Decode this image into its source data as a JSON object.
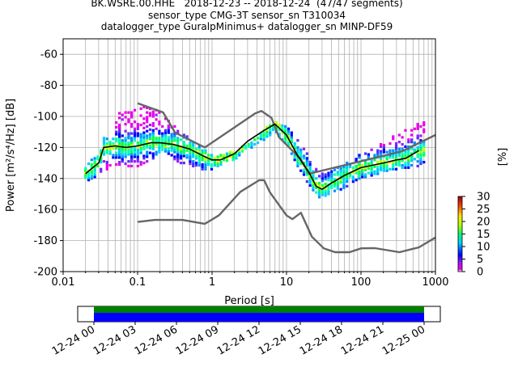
{
  "title": {
    "line1": "BK.WSRE.00.HHE   2018-12-23 -- 2018-12-24  (47/47 segments)",
    "line2": "sensor_type CMG-3T sensor_sn T310034",
    "line3": "datalogger_type GuralpMinimus+ datalogger_sn MINP-DF59"
  },
  "chart_data": [
    {
      "type": "heatmap",
      "title": "",
      "xlabel": "Period [s]",
      "ylabel": "Power [m²/s⁴/Hz] [dB]",
      "xscale": "log",
      "xlim": [
        0.01,
        1000
      ],
      "ylim": [
        -200,
        -50
      ],
      "x_ticks": [
        "0.01",
        "0.1",
        "1",
        "10",
        "100",
        "1000"
      ],
      "y_ticks": [
        "-60",
        "-80",
        "-100",
        "-120",
        "-140",
        "-160",
        "-180",
        "-200"
      ],
      "grid": true,
      "colorbar": {
        "label": "[%]",
        "range": [
          0,
          30
        ],
        "ticks": [
          "0",
          "5",
          "10",
          "15",
          "20",
          "25",
          "30"
        ]
      },
      "series": [
        {
          "name": "",
          "kind": "new-high-noise-model",
          "color": "#666666",
          "x": [
            0.1,
            0.22,
            0.32,
            0.8,
            3.8,
            4.6,
            6.3,
            7.9,
            15.4,
            20,
            354.8,
            1000
          ],
          "y": [
            -91.5,
            -97.4,
            -110.5,
            -120,
            -98,
            -96.5,
            -101,
            -113.4,
            -127.4,
            -137,
            -122.5,
            -112
          ]
        },
        {
          "name": "",
          "kind": "new-low-noise-model",
          "color": "#666666",
          "x": [
            0.1,
            0.17,
            0.4,
            0.8,
            1.24,
            2.4,
            4.3,
            5,
            6,
            10,
            12,
            15.6,
            21.9,
            31.6,
            45,
            70,
            101,
            154,
            328,
            600,
            1000
          ],
          "y": [
            -168,
            -166.7,
            -166.7,
            -169.2,
            -163.7,
            -148.6,
            -141.1,
            -141.1,
            -149,
            -163.8,
            -166.2,
            -162.1,
            -177.5,
            -185,
            -187.5,
            -187.5,
            -185,
            -184.9,
            -187.5,
            -184.4,
            -178
          ]
        },
        {
          "name": "",
          "kind": "mode",
          "color": "#000000",
          "x": [
            0.02,
            0.025,
            0.03,
            0.035,
            0.05,
            0.07,
            0.1,
            0.15,
            0.2,
            0.3,
            0.5,
            0.8,
            1,
            1.3,
            2,
            3,
            5,
            7,
            10,
            14,
            20,
            25,
            30,
            40,
            60,
            100,
            200,
            300,
            400,
            600
          ],
          "y": [
            -137,
            -133,
            -130,
            -120,
            -119,
            -120,
            -119,
            -117,
            -117,
            -118,
            -121,
            -126,
            -128,
            -128,
            -124,
            -116,
            -109,
            -105,
            -112,
            -125,
            -136,
            -145,
            -147,
            -143,
            -138,
            -133,
            -130,
            -128,
            -127,
            -122
          ]
        },
        {
          "name": "",
          "kind": "psd-upper-cloud",
          "color": "#d400ff",
          "x": [
            0.05,
            0.07,
            0.1,
            0.14,
            0.2,
            0.3,
            0.5,
            1,
            2,
            4,
            6,
            8,
            10,
            15,
            20,
            30,
            50,
            80,
            120,
            200,
            300,
            500,
            700
          ],
          "y": [
            -100,
            -97,
            -94,
            -94,
            -97,
            -106,
            -115,
            -126,
            -123,
            -114,
            -106,
            -104,
            -107,
            -117,
            -125,
            -138,
            -133,
            -128,
            -123,
            -118,
            -112,
            -107,
            -103
          ]
        },
        {
          "name": "",
          "kind": "psd-lower-cloud",
          "color": "#0000ff",
          "x": [
            0.02,
            0.03,
            0.05,
            0.07,
            0.1,
            0.15,
            0.2,
            0.3,
            0.5,
            0.8,
            1,
            1.5,
            2,
            3,
            5,
            7,
            10,
            14,
            20,
            25,
            30,
            40,
            60,
            100,
            200,
            300,
            500,
            700
          ],
          "y": [
            -141,
            -137,
            -130,
            -132,
            -132,
            -127,
            -125,
            -128,
            -131,
            -134,
            -133,
            -130,
            -127,
            -121,
            -114,
            -109,
            -117,
            -131,
            -144,
            -151,
            -152,
            -149,
            -145,
            -139,
            -135,
            -133,
            -132,
            -131
          ]
        }
      ]
    },
    {
      "type": "timeline",
      "title": "",
      "x_ticks": [
        "12-24 00",
        "12-24 03",
        "12-24 06",
        "12-24 09",
        "12-24 12",
        "12-24 15",
        "12-24 18",
        "12-24 21",
        "12-25 00"
      ],
      "coverage_color": "#008000",
      "data_color": "#0000ff"
    }
  ]
}
